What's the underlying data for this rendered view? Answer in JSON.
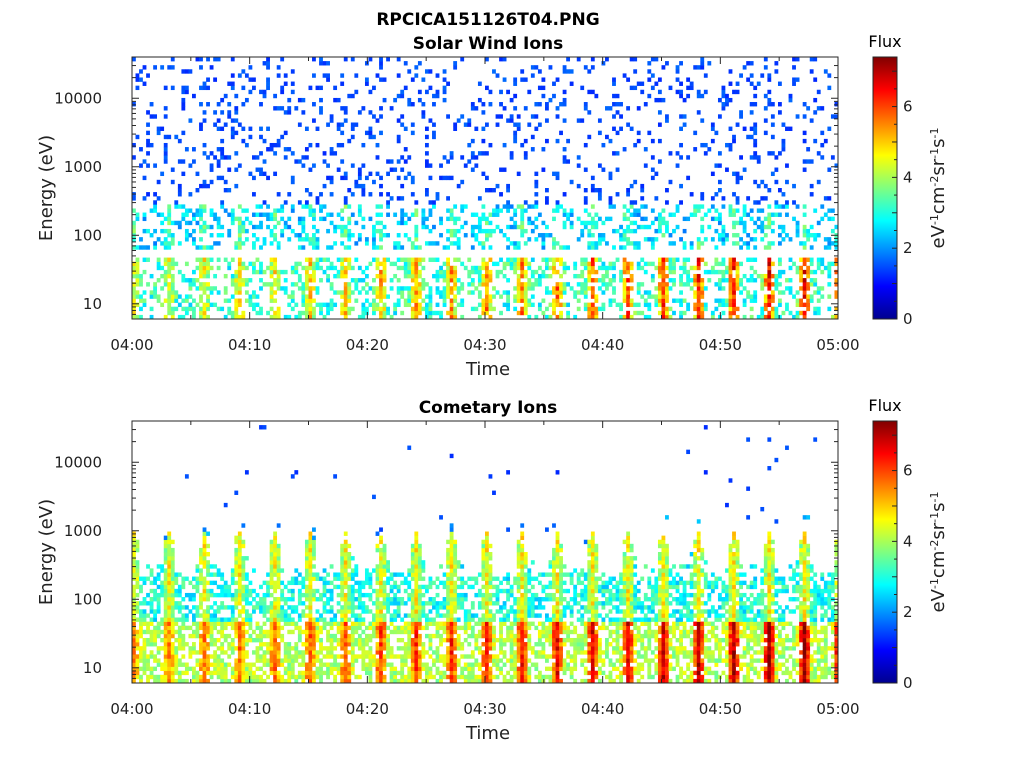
{
  "figure_title": "RPCICA151126T04.PNG",
  "chart_data": [
    {
      "type": "heatmap",
      "title": "Solar Wind Ions",
      "xlabel": "Time",
      "ylabel": "Energy (eV)",
      "x_ticks": [
        "04:00",
        "04:10",
        "04:20",
        "04:30",
        "04:40",
        "04:50",
        "05:00"
      ],
      "y_scale": "log",
      "y_ticks": [
        "10",
        "100",
        "1000",
        "10000"
      ],
      "ylim": [
        6,
        40000
      ],
      "colorbar": {
        "title": "Flux",
        "label": "eV-1cm-2sr-1s-1",
        "ticks": [
          "0",
          "2",
          "4",
          "6"
        ],
        "range": [
          0,
          7.4
        ],
        "colormap": "jet"
      }
    },
    {
      "type": "heatmap",
      "title": "Cometary Ions",
      "xlabel": "Time",
      "ylabel": "Energy (eV)",
      "x_ticks": [
        "04:00",
        "04:10",
        "04:20",
        "04:30",
        "04:40",
        "04:50",
        "05:00"
      ],
      "y_scale": "log",
      "y_ticks": [
        "10",
        "100",
        "1000",
        "10000"
      ],
      "ylim": [
        6,
        40000
      ],
      "colorbar": {
        "title": "Flux",
        "label": "eV-1cm-2sr-1s-1",
        "ticks": [
          "0",
          "2",
          "4",
          "6"
        ],
        "range": [
          0,
          7.4
        ],
        "colormap": "jet"
      }
    }
  ]
}
